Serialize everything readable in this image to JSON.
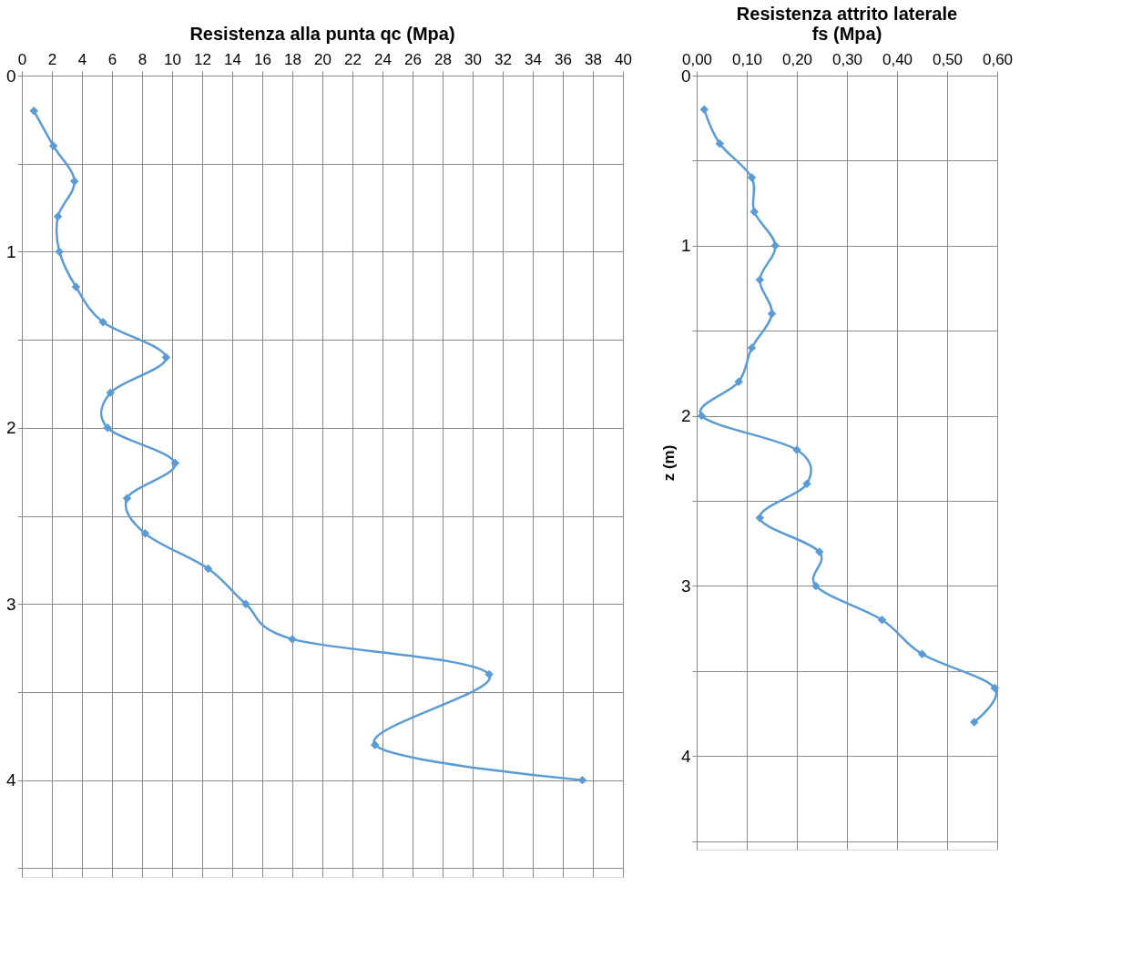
{
  "chart_data": [
    {
      "type": "line",
      "title": "Resistenza alla punta qc (Mpa)",
      "x": [
        0.8,
        2.1,
        3.5,
        2.4,
        2.5,
        3.6,
        5.4,
        9.6,
        5.9,
        5.7,
        10.2,
        7.0,
        8.2,
        12.4,
        14.9,
        18.0,
        31.1,
        23.5,
        37.3
      ],
      "series": [
        {
          "color": "#5b9bd5",
          "values": [
            0.2,
            0.4,
            0.6,
            0.8,
            1.0,
            1.2,
            1.4,
            1.6,
            1.8,
            2.0,
            2.2,
            2.4,
            2.6,
            2.8,
            3.0,
            3.2,
            3.4,
            3.8,
            4.0
          ]
        }
      ],
      "xlim": [
        0,
        40
      ],
      "xticks": [
        0,
        2,
        4,
        6,
        8,
        10,
        12,
        14,
        16,
        18,
        20,
        22,
        24,
        26,
        28,
        30,
        32,
        34,
        36,
        38,
        40
      ],
      "ylim": [
        4.55,
        0
      ],
      "yticks": [
        0,
        {
          "value": 0.5,
          "label": null
        },
        1,
        {
          "value": 1.5,
          "label": null
        },
        2,
        {
          "value": 2.5,
          "label": null
        },
        3,
        {
          "value": 3.5,
          "label": null
        },
        4,
        {
          "value": 4.5,
          "label": null
        }
      ],
      "grid": true,
      "marker": "diamond",
      "line_style": "solid"
    },
    {
      "type": "line",
      "title": "Resistenza attrito laterale\nfs (Mpa)",
      "ylabel": "z (m)",
      "x": [
        0.015,
        0.046,
        0.11,
        0.115,
        0.157,
        0.126,
        0.15,
        0.11,
        0.084,
        0.01,
        0.2,
        0.22,
        0.126,
        0.245,
        0.238,
        0.37,
        0.45,
        0.595,
        0.554
      ],
      "series": [
        {
          "color": "#5b9bd5",
          "values": [
            0.2,
            0.4,
            0.6,
            0.8,
            1.0,
            1.2,
            1.4,
            1.6,
            1.8,
            2.0,
            2.2,
            2.4,
            2.6,
            2.8,
            3.0,
            3.2,
            3.4,
            3.6,
            3.8
          ]
        }
      ],
      "xlim": [
        0,
        0.6
      ],
      "xticks": [
        {
          "value": 0,
          "label": "0,00"
        },
        {
          "value": 0.1,
          "label": "0,10"
        },
        {
          "value": 0.2,
          "label": "0,20"
        },
        {
          "value": 0.3,
          "label": "0,30"
        },
        {
          "value": 0.4,
          "label": "0,40"
        },
        {
          "value": 0.5,
          "label": "0,50"
        },
        {
          "value": 0.6,
          "label": "0,60"
        }
      ],
      "ylim": [
        4.55,
        0
      ],
      "yticks": [
        0,
        {
          "value": 0.5,
          "label": null
        },
        1,
        {
          "value": 1.5,
          "label": null
        },
        2,
        {
          "value": 2.5,
          "label": null
        },
        3,
        {
          "value": 3.5,
          "label": null
        },
        4,
        {
          "value": 4.5,
          "label": null
        }
      ],
      "grid": true,
      "marker": "diamond",
      "line_style": "solid"
    }
  ]
}
